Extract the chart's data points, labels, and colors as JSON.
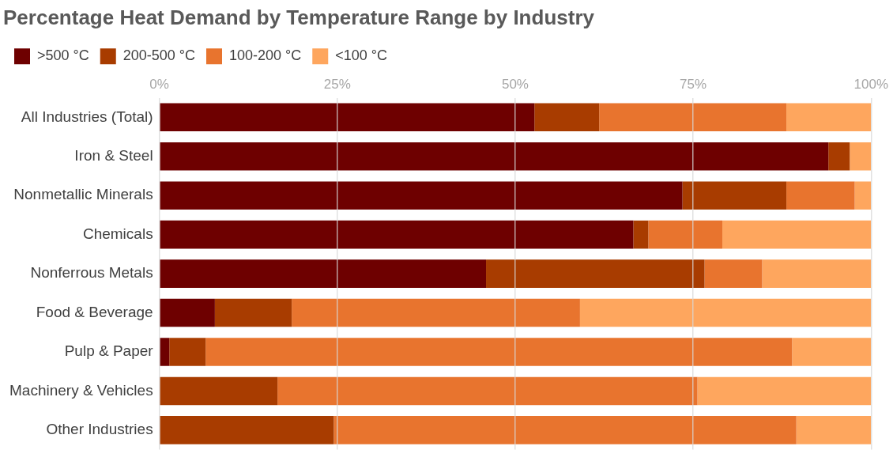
{
  "chart_data": {
    "type": "bar",
    "orientation": "horizontal",
    "stacked": true,
    "title": "Percentage Heat Demand by Temperature Range by Industry",
    "categories": [
      "All Industries (Total)",
      "Iron & Steel",
      "Nonmetallic Minerals",
      "Chemicals",
      "Nonferrous Metals",
      "Food & Beverage",
      "Pulp & Paper",
      "Machinery & Vehicles",
      "Other Industries"
    ],
    "series": [
      {
        "name": ">500 °C",
        "color": "#6e0000",
        "values": [
          52.7,
          94.0,
          73.5,
          66.6,
          45.9,
          7.8,
          1.4,
          0,
          0
        ]
      },
      {
        "name": "200-500 °C",
        "color": "#a83c00",
        "values": [
          9.1,
          3.0,
          14.6,
          2.1,
          30.7,
          10.8,
          5.1,
          16.6,
          24.5
        ]
      },
      {
        "name": "100-200 °C",
        "color": "#e8742e",
        "values": [
          26.3,
          0,
          9.6,
          10.4,
          8.1,
          40.5,
          82.4,
          59.0,
          65.0
        ]
      },
      {
        "name": "<100 °C",
        "color": "#fea65e",
        "values": [
          11.9,
          3.0,
          2.3,
          20.9,
          15.3,
          40.9,
          11.1,
          24.4,
          10.5
        ]
      }
    ],
    "xlim": [
      0,
      100
    ],
    "xticks": [
      {
        "value": 0,
        "label": "0%"
      },
      {
        "value": 25,
        "label": "25%"
      },
      {
        "value": 50,
        "label": "50%"
      },
      {
        "value": 75,
        "label": "75%"
      },
      {
        "value": 100,
        "label": "100%"
      }
    ],
    "grid": "x",
    "legend": "top left"
  }
}
